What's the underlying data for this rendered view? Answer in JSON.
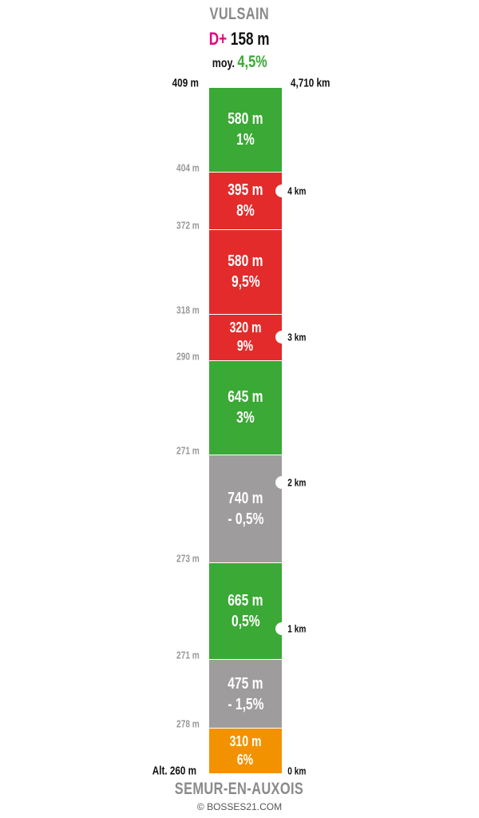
{
  "summit": "VULSAIN",
  "dplus_label": "D+",
  "dplus_value": "158 m",
  "avg_label": "moy.",
  "avg_value": "4,5%",
  "start": "SEMUR-EN-AUXOIS",
  "copyright": "© BOSSES21.COM",
  "top_altitude": "409 m",
  "top_distance": "4,710 km",
  "base_altitude": "Alt. 260 m",
  "base_distance": "0 km",
  "colors": {
    "green": "#3aa935",
    "red": "#e32b2b",
    "grey": "#9e9c9c",
    "orange": "#f39200"
  },
  "segments": [
    {
      "length": "580 m",
      "grade": "1%",
      "color": "green",
      "length_m": 580
    },
    {
      "length": "395 m",
      "grade": "8%",
      "color": "red",
      "length_m": 395
    },
    {
      "length": "580 m",
      "grade": "9,5%",
      "color": "red",
      "length_m": 580
    },
    {
      "length": "320 m",
      "grade": "9%",
      "color": "red",
      "length_m": 320
    },
    {
      "length": "645 m",
      "grade": "3%",
      "color": "green",
      "length_m": 645
    },
    {
      "length": "740 m",
      "grade": "- 0,5%",
      "color": "grey",
      "length_m": 740
    },
    {
      "length": "665 m",
      "grade": "0,5%",
      "color": "green",
      "length_m": 665
    },
    {
      "length": "475 m",
      "grade": "- 1,5%",
      "color": "grey",
      "length_m": 475
    },
    {
      "length": "310 m",
      "grade": "6%",
      "color": "orange",
      "length_m": 310
    }
  ],
  "boundary_altitudes": [
    "404 m",
    "372 m",
    "318 m",
    "290 m",
    "271 m",
    "273 m",
    "271 m",
    "278 m"
  ],
  "km_markers": [
    {
      "label": "4 km",
      "km": 4
    },
    {
      "label": "3 km",
      "km": 3
    },
    {
      "label": "2 km",
      "km": 2
    },
    {
      "label": "1 km",
      "km": 1
    }
  ]
}
